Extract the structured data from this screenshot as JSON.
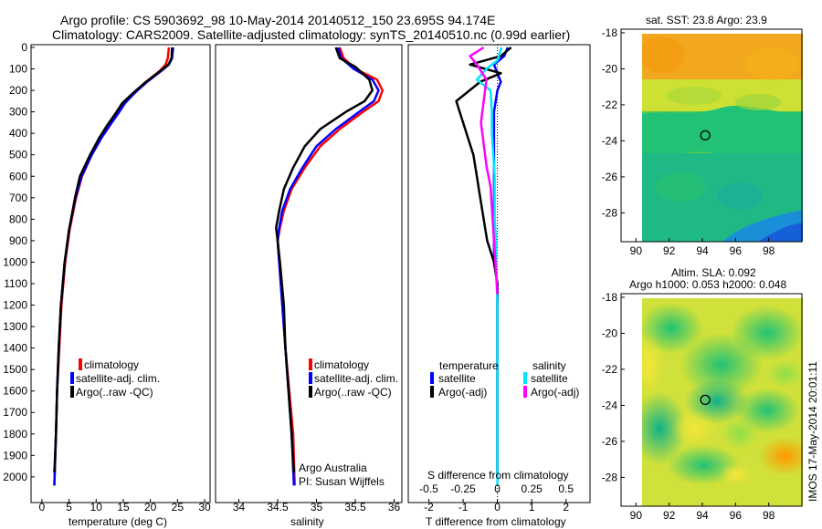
{
  "header": {
    "title_line1": "Argo profile: CS 5903692_98 10-May-2014 20140512_150 23.695S 94.174E",
    "title_line2": "Climatology: CARS2009. Satellite-adjusted climatology: synTS_20140510.nc (0.99d earlier)"
  },
  "footer": {
    "argo_label": "Argo Australia",
    "pi_label": "PI: Susan Wijffels",
    "timestamp": "IMOS 17-May-2014 20:01:11"
  },
  "colors": {
    "climatology": "#ff0000",
    "satellite": "#0000ff",
    "argo": "#000000",
    "sal_satellite": "#00e5ff",
    "sal_argo": "#ff00ff"
  },
  "chart_data": [
    {
      "id": "temperature",
      "type": "line",
      "xlabel": "temperature (deg C)",
      "xlim": [
        -2,
        31
      ],
      "ylim": [
        2060,
        0
      ],
      "xticks": [
        0,
        5,
        10,
        15,
        20,
        25,
        30
      ],
      "yticks": [
        0,
        100,
        200,
        300,
        400,
        500,
        600,
        700,
        800,
        900,
        1000,
        1100,
        1200,
        1300,
        1400,
        1500,
        1600,
        1700,
        1800,
        1900,
        2000
      ],
      "legend": [
        "climatology",
        "satellite-adj. clim.",
        "Argo(..raw -QC)"
      ],
      "series": [
        {
          "name": "climatology",
          "color": "#ff0000",
          "x": [
            23.4,
            23.2,
            22.8,
            21.7,
            19.2,
            17.0,
            15.2,
            13.9,
            12.6,
            11.0,
            9.2,
            7.4,
            6.3,
            5.1,
            4.3,
            3.6,
            3.2,
            2.8,
            2.6,
            2.3
          ],
          "y": [
            0,
            50,
            80,
            110,
            160,
            210,
            260,
            310,
            360,
            420,
            500,
            600,
            700,
            850,
            1000,
            1200,
            1400,
            1600,
            1800,
            2040
          ]
        },
        {
          "name": "satellite-adj. clim.",
          "color": "#0000ff",
          "x": [
            24.2,
            24.0,
            23.4,
            22.0,
            19.4,
            17.2,
            15.3,
            14.0,
            12.6,
            11.0,
            9.2,
            7.3,
            6.2,
            5.0,
            4.2,
            3.5,
            3.1,
            2.8,
            2.6,
            2.3
          ],
          "y": [
            0,
            50,
            80,
            110,
            160,
            210,
            260,
            310,
            360,
            420,
            500,
            600,
            700,
            850,
            1000,
            1200,
            1400,
            1600,
            1800,
            2040
          ]
        },
        {
          "name": "Argo(..raw -QC)",
          "color": "#000000",
          "x": [
            24.0,
            23.9,
            23.3,
            21.8,
            19.2,
            16.9,
            14.8,
            13.5,
            12.1,
            10.6,
            8.9,
            7.0,
            6.1,
            5.0,
            4.2,
            3.5,
            3.1,
            2.8,
            2.6,
            2.3
          ],
          "y": [
            0,
            50,
            80,
            110,
            160,
            210,
            260,
            310,
            360,
            420,
            500,
            600,
            700,
            850,
            1000,
            1200,
            1400,
            1600,
            1800,
            1980
          ]
        }
      ]
    },
    {
      "id": "salinity",
      "type": "line",
      "xlabel": "salinity",
      "xlim": [
        33.7,
        36.1
      ],
      "ylim": [
        2060,
        0
      ],
      "xticks": [
        34,
        34.5,
        35,
        35.5,
        36
      ],
      "legend": [
        "climatology",
        "satellite-adj. clim.",
        "Argo(..raw -QC)"
      ],
      "series": [
        {
          "name": "climatology",
          "color": "#ff0000",
          "x": [
            35.3,
            35.35,
            35.5,
            35.78,
            35.85,
            35.8,
            35.6,
            35.3,
            35.05,
            34.85,
            34.68,
            34.58,
            34.53,
            34.5,
            34.52,
            34.56,
            34.6,
            34.65,
            34.7,
            34.72
          ],
          "y": [
            0,
            50,
            100,
            150,
            200,
            250,
            300,
            380,
            460,
            560,
            660,
            760,
            840,
            900,
            1000,
            1200,
            1400,
            1600,
            1800,
            2040
          ]
        },
        {
          "name": "satellite-adj. clim.",
          "color": "#0000ff",
          "x": [
            35.28,
            35.32,
            35.48,
            35.72,
            35.8,
            35.74,
            35.55,
            35.25,
            35.0,
            34.82,
            34.66,
            34.56,
            34.52,
            34.5,
            34.52,
            34.56,
            34.6,
            34.64,
            34.68,
            34.71
          ],
          "y": [
            0,
            50,
            100,
            150,
            200,
            250,
            300,
            380,
            460,
            560,
            660,
            760,
            840,
            900,
            1000,
            1200,
            1400,
            1600,
            1800,
            2040
          ]
        },
        {
          "name": "Argo(..raw -QC)",
          "color": "#000000",
          "x": [
            35.25,
            35.3,
            35.5,
            35.68,
            35.72,
            35.62,
            35.38,
            35.05,
            34.85,
            34.7,
            34.58,
            34.52,
            34.48,
            34.5,
            34.53,
            34.58,
            34.6,
            34.64,
            34.68,
            34.71
          ],
          "y": [
            0,
            50,
            90,
            150,
            200,
            250,
            300,
            380,
            460,
            560,
            660,
            760,
            840,
            900,
            1000,
            1200,
            1400,
            1600,
            1800,
            1980
          ]
        }
      ]
    },
    {
      "id": "difference",
      "type": "line",
      "xlabel": "T difference from climatology",
      "xlabel_top": "S difference from climatology",
      "xlim": [
        -2.6,
        2.7
      ],
      "ylim": [
        2060,
        0
      ],
      "xticks": [
        -2,
        -1,
        0,
        1,
        2
      ],
      "xticks_top": [
        -0.5,
        -0.25,
        0,
        0.25,
        0.5
      ],
      "legend": {
        "temperature_title": "temperature",
        "salinity_title": "salinity",
        "items": [
          "satellite",
          "Argo(-adj)",
          "satellite",
          "Argo(-adj)"
        ]
      },
      "series": [
        {
          "name": "satellite",
          "group": "temperature",
          "color": "#0000ff",
          "x": [
            0.3,
            0.2,
            -0.1,
            0.0,
            0.1,
            0.0,
            -0.1,
            -0.1,
            -0.1,
            -0.1,
            -0.1,
            -0.1,
            -0.1,
            -0.1,
            0.0,
            0.0,
            0.0
          ],
          "y": [
            0,
            40,
            80,
            120,
            160,
            200,
            300,
            400,
            500,
            600,
            700,
            800,
            900,
            1000,
            1100,
            1300,
            2000
          ]
        },
        {
          "name": "Argo(-adj)",
          "group": "temperature",
          "color": "#000000",
          "x": [
            0.4,
            0.1,
            -0.8,
            0.1,
            -0.5,
            -1.2,
            -1.1,
            -0.9,
            -0.7,
            -0.6,
            -0.5,
            -0.4,
            -0.3,
            -0.1,
            0.0,
            0.0,
            0.0
          ],
          "y": [
            0,
            40,
            80,
            120,
            160,
            250,
            300,
            400,
            500,
            600,
            700,
            800,
            900,
            1000,
            1100,
            1300,
            1980
          ]
        },
        {
          "name": "satellite",
          "group": "salinity",
          "color": "#00e5ff",
          "x": [
            0.03,
            0.0,
            -0.08,
            -0.15,
            -0.05,
            -0.04,
            -0.04,
            -0.03,
            -0.02,
            -0.02,
            -0.02,
            -0.01,
            -0.01,
            0.0,
            0.0,
            0.0
          ],
          "y": [
            0,
            60,
            100,
            150,
            200,
            300,
            400,
            500,
            600,
            700,
            800,
            900,
            1000,
            1200,
            1600,
            2040
          ]
        },
        {
          "name": "Argo(-adj)",
          "group": "salinity",
          "color": "#ff00ff",
          "x": [
            -0.1,
            -0.2,
            -0.15,
            -0.08,
            -0.1,
            -0.12,
            -0.1,
            -0.08,
            -0.05,
            -0.04,
            -0.03,
            -0.02,
            -0.01,
            0.0
          ],
          "y": [
            0,
            40,
            80,
            150,
            250,
            350,
            450,
            550,
            650,
            750,
            850,
            950,
            1050,
            1150
          ]
        }
      ]
    },
    {
      "id": "sst_map",
      "type": "heatmap",
      "title": "sat. SST: 23.8  Argo: 23.9",
      "xlim": [
        89.1,
        100.0
      ],
      "ylim": [
        -29.6,
        -17.8
      ],
      "xticks": [
        90,
        92,
        94,
        96,
        98
      ],
      "yticks": [
        -18,
        -20,
        -22,
        -24,
        -26,
        -28
      ],
      "marker": {
        "lon": 94.174,
        "lat": -23.695
      }
    },
    {
      "id": "sla_map",
      "type": "heatmap",
      "title": "Altim. SLA: 0.092",
      "subtitle": "Argo h1000: 0.053 h2000: 0.048",
      "xlim": [
        89.1,
        100.0
      ],
      "ylim": [
        -29.6,
        -17.8
      ],
      "xticks": [
        90,
        92,
        94,
        96,
        98
      ],
      "yticks": [
        -18,
        -20,
        -22,
        -24,
        -26,
        -28
      ],
      "marker": {
        "lon": 94.174,
        "lat": -23.695
      }
    }
  ]
}
